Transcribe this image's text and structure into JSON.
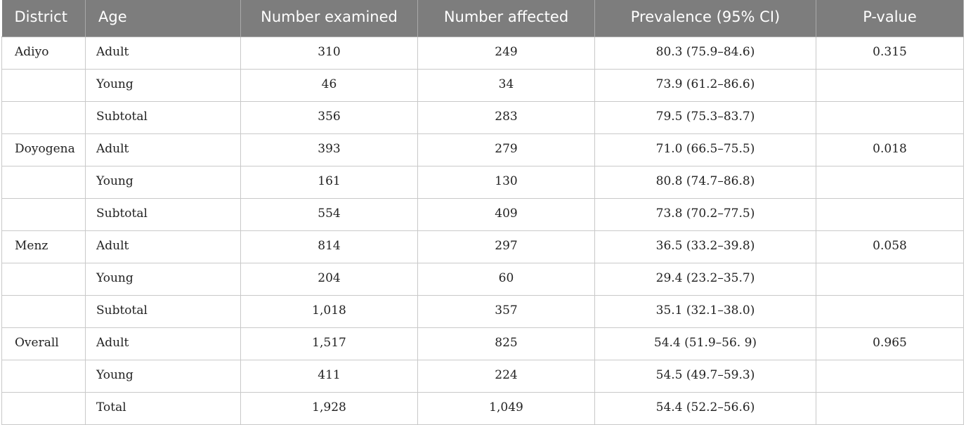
{
  "table": {
    "headers": [
      "District",
      "Age",
      "Number examined",
      "Number affected",
      "Prevalence (95% CI)",
      "P-value"
    ],
    "rows": [
      [
        "Adiyo",
        "Adult",
        "310",
        "249",
        "80.3 (75.9–84.6)",
        "0.315"
      ],
      [
        "",
        "Young",
        "46",
        "34",
        "73.9 (61.2–86.6)",
        ""
      ],
      [
        "",
        "Subtotal",
        "356",
        "283",
        "79.5 (75.3–83.7)",
        ""
      ],
      [
        "Doyogena",
        "Adult",
        "393",
        "279",
        "71.0 (66.5–75.5)",
        "0.018"
      ],
      [
        "",
        "Young",
        "161",
        "130",
        "80.8 (74.7–86.8)",
        ""
      ],
      [
        "",
        "Subtotal",
        "554",
        "409",
        "73.8 (70.2–77.5)",
        ""
      ],
      [
        "Menz",
        "Adult",
        "814",
        "297",
        "36.5 (33.2–39.8)",
        "0.058"
      ],
      [
        "",
        "Young",
        "204",
        "60",
        "29.4 (23.2–35.7)",
        ""
      ],
      [
        "",
        "Subtotal",
        "1,018",
        "357",
        "35.1 (32.1–38.0)",
        ""
      ],
      [
        "Overall",
        "Adult",
        "1,517",
        "825",
        "54.4 (51.9–56. 9)",
        "0.965"
      ],
      [
        "",
        "Young",
        "411",
        "224",
        "54.5 (49.7–59.3)",
        ""
      ],
      [
        "",
        "Total",
        "1,928",
        "1,049",
        "54.4 (52.2–56.6)",
        ""
      ]
    ]
  }
}
